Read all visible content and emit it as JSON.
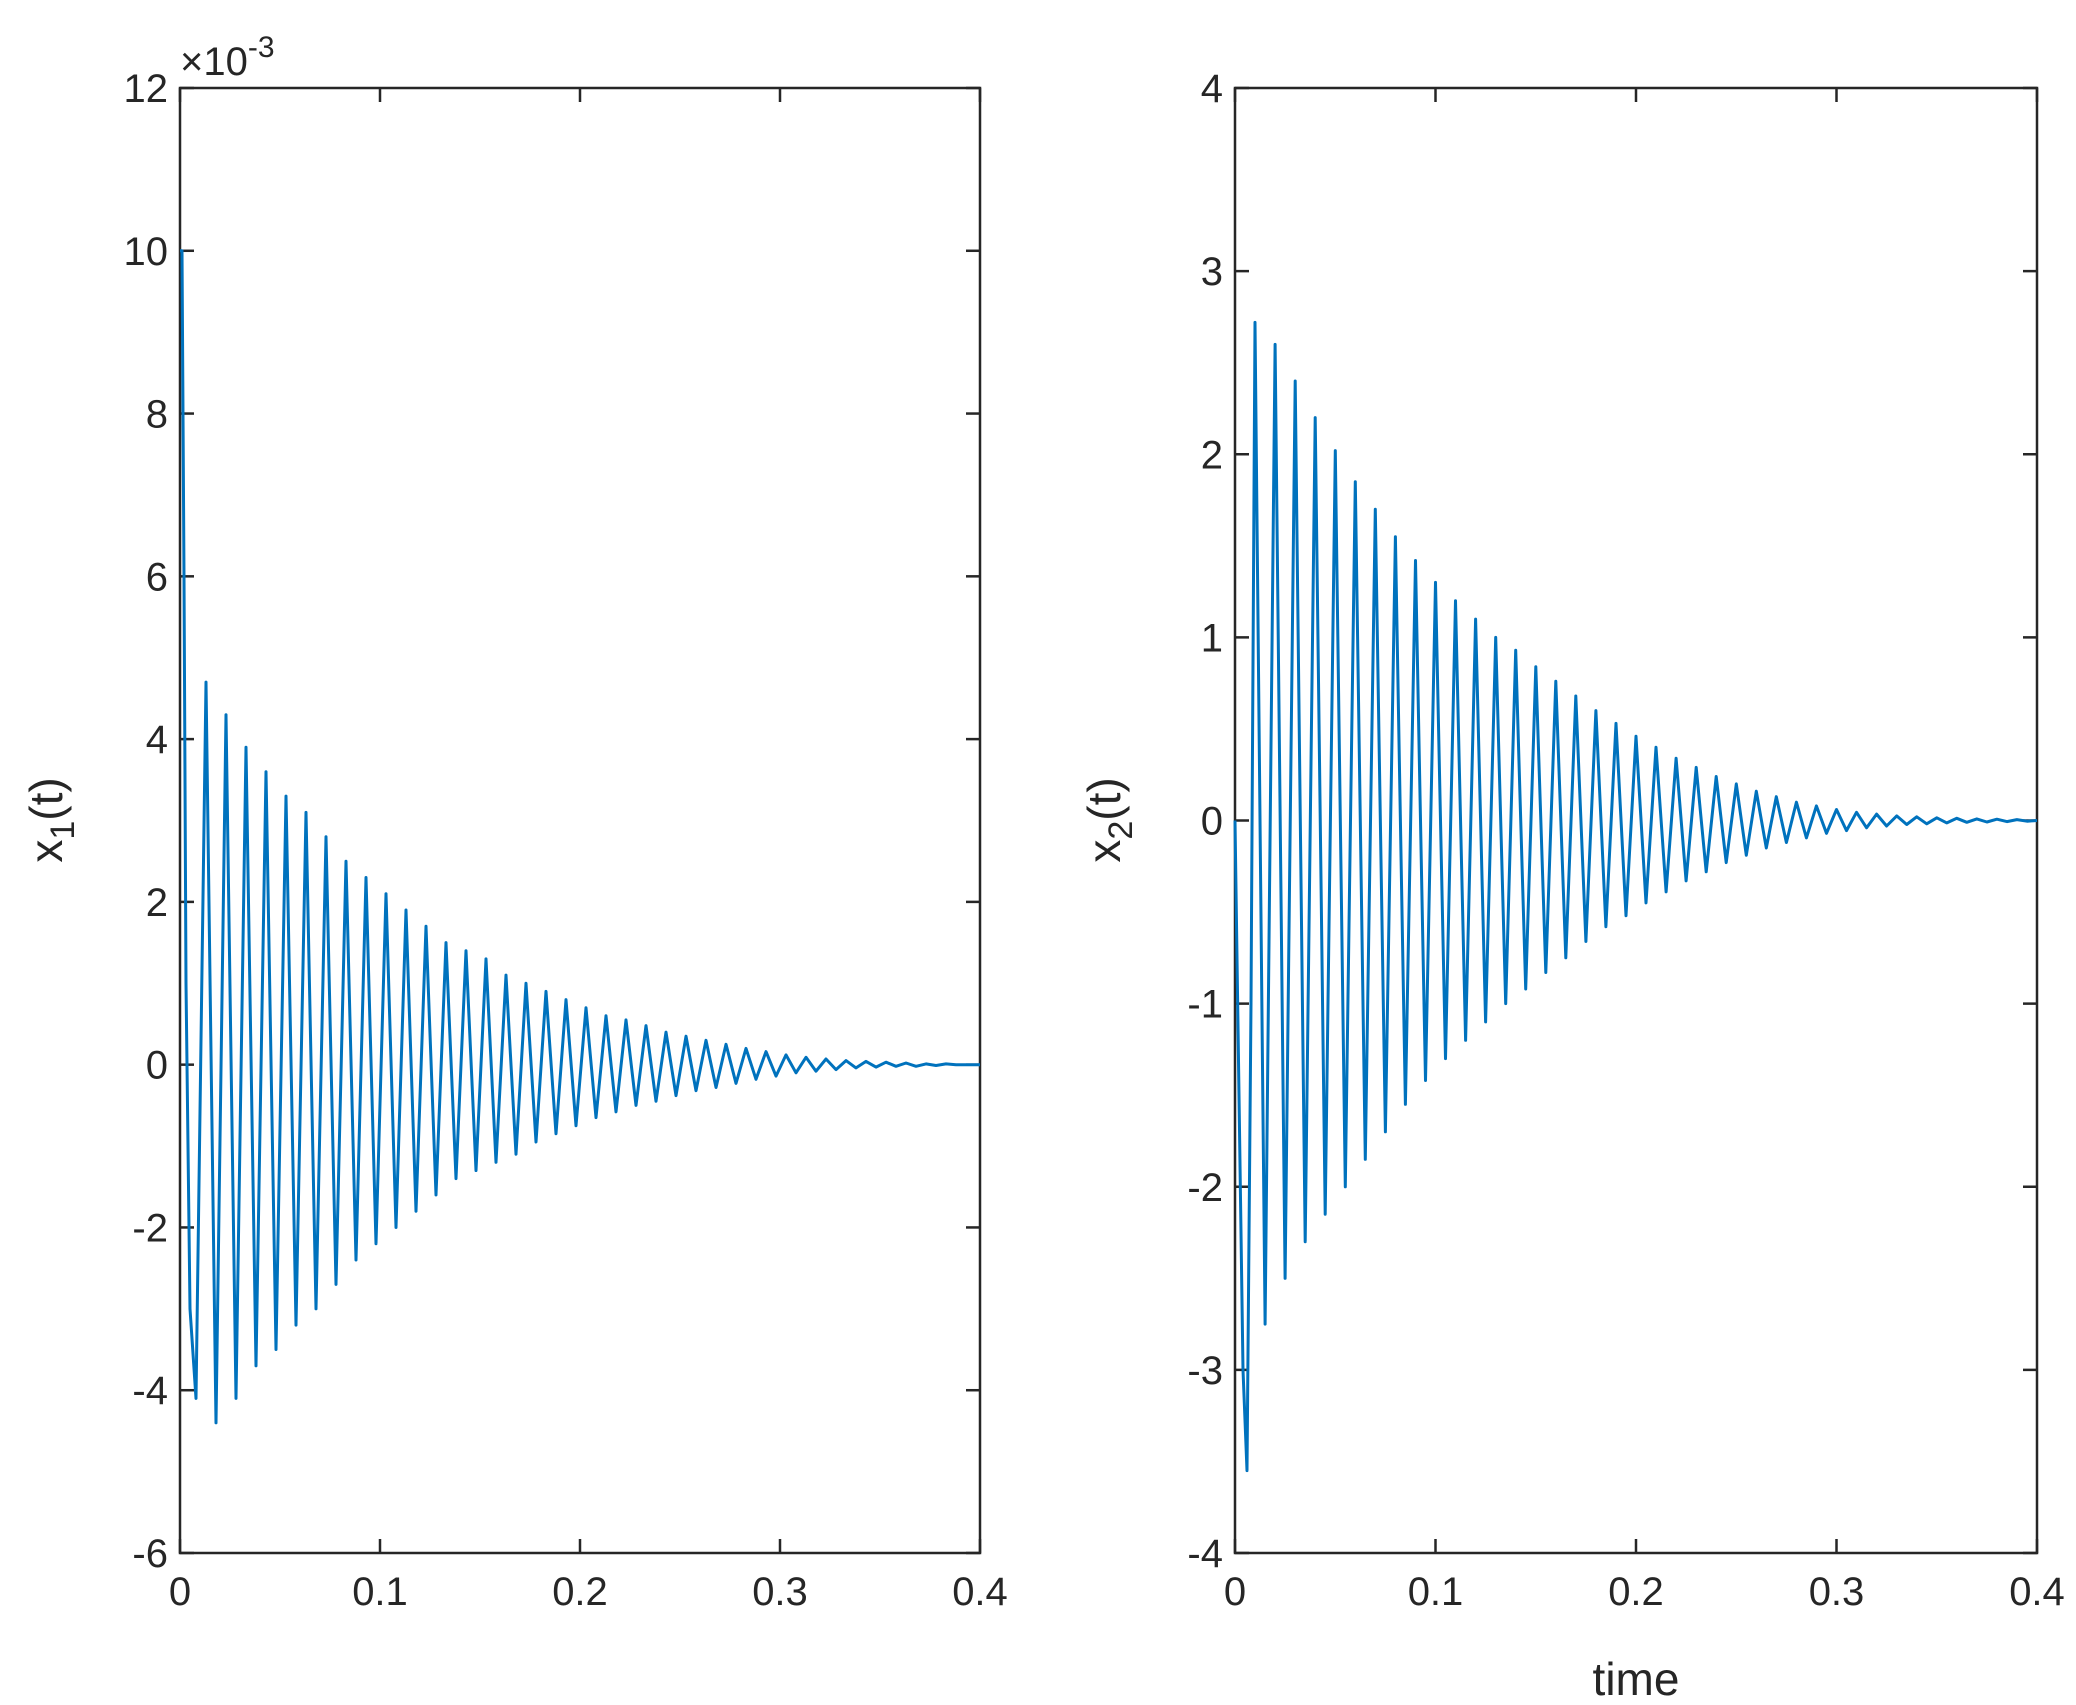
{
  "chart_data": [
    {
      "type": "line",
      "ylabel_base": "x",
      "ylabel_sub": "1",
      "ylabel_tail": "(t)",
      "xlabel": "",
      "xlim": [
        0,
        0.4
      ],
      "ylim": [
        -0.006,
        0.012
      ],
      "xticks": [
        0,
        0.1,
        0.2,
        0.3,
        0.4
      ],
      "xtick_labels": [
        "0",
        "0.1",
        "0.2",
        "0.3",
        "0.4"
      ],
      "yticks": [
        -0.006,
        -0.004,
        -0.002,
        0,
        0.002,
        0.004,
        0.006,
        0.008,
        0.01,
        0.012
      ],
      "ytick_labels": [
        "-6",
        "-4",
        "-2",
        "0",
        "2",
        "4",
        "6",
        "8",
        "10",
        "12"
      ],
      "exponent_prefix": "×10",
      "exponent_power": "-3",
      "grid": false,
      "line_color": "#0072BD",
      "series": [
        {
          "x": [
            0,
            0.001,
            0.002,
            0.003,
            0.005,
            0.008,
            0.013,
            0.018,
            0.023,
            0.028,
            0.033,
            0.038,
            0.043,
            0.048,
            0.053,
            0.058,
            0.063,
            0.068,
            0.073,
            0.078,
            0.083,
            0.088,
            0.093,
            0.098,
            0.103,
            0.108,
            0.113,
            0.118,
            0.123,
            0.128,
            0.133,
            0.138,
            0.143,
            0.148,
            0.153,
            0.158,
            0.163,
            0.168,
            0.173,
            0.178,
            0.183,
            0.188,
            0.193,
            0.198,
            0.203,
            0.208,
            0.213,
            0.218,
            0.223,
            0.228,
            0.233,
            0.238,
            0.243,
            0.248,
            0.253,
            0.258,
            0.263,
            0.268,
            0.273,
            0.278,
            0.283,
            0.288,
            0.293,
            0.298,
            0.303,
            0.308,
            0.313,
            0.318,
            0.323,
            0.328,
            0.333,
            0.338,
            0.343,
            0.348,
            0.353,
            0.358,
            0.363,
            0.368,
            0.373,
            0.378,
            0.383,
            0.388,
            0.393,
            0.398,
            0.4
          ],
          "y": [
            0.01,
            0.01,
            0.006,
            0.001,
            -0.003,
            -0.0041,
            0.0047,
            -0.0044,
            0.0043,
            -0.0041,
            0.0039,
            -0.0037,
            0.0036,
            -0.0035,
            0.0033,
            -0.0032,
            0.0031,
            -0.003,
            0.0028,
            -0.0027,
            0.0025,
            -0.0024,
            0.0023,
            -0.0022,
            0.0021,
            -0.002,
            0.0019,
            -0.0018,
            0.0017,
            -0.0016,
            0.0015,
            -0.0014,
            0.0014,
            -0.0013,
            0.0013,
            -0.0012,
            0.0011,
            -0.0011,
            0.001,
            -0.00095,
            0.0009,
            -0.00085,
            0.0008,
            -0.00075,
            0.0007,
            -0.00065,
            0.0006,
            -0.00058,
            0.00055,
            -0.0005,
            0.00048,
            -0.00045,
            0.0004,
            -0.00038,
            0.00035,
            -0.00032,
            0.0003,
            -0.00028,
            0.00025,
            -0.00023,
            0.0002,
            -0.00018,
            0.00016,
            -0.00014,
            0.00012,
            -0.0001,
            9e-05,
            -8e-05,
            7e-05,
            -6e-05,
            5e-05,
            -4e-05,
            4e-05,
            -3e-05,
            3e-05,
            -2e-05,
            2e-05,
            -2e-05,
            1e-05,
            -1e-05,
            1e-05,
            0,
            0,
            0,
            0
          ]
        }
      ]
    },
    {
      "type": "line",
      "ylabel_base": "x",
      "ylabel_sub": "2",
      "ylabel_tail": "(t)",
      "xlabel": "time",
      "xlim": [
        0,
        0.4
      ],
      "ylim": [
        -4,
        4
      ],
      "xticks": [
        0,
        0.1,
        0.2,
        0.3,
        0.4
      ],
      "xtick_labels": [
        "0",
        "0.1",
        "0.2",
        "0.3",
        "0.4"
      ],
      "yticks": [
        -4,
        -3,
        -2,
        -1,
        0,
        1,
        2,
        3,
        4
      ],
      "ytick_labels": [
        "-4",
        "-3",
        "-2",
        "-1",
        "0",
        "1",
        "2",
        "3",
        "4"
      ],
      "grid": false,
      "line_color": "#0072BD",
      "series": [
        {
          "x": [
            0,
            0.002,
            0.004,
            0.006,
            0.008,
            0.01,
            0.015,
            0.02,
            0.025,
            0.03,
            0.035,
            0.04,
            0.045,
            0.05,
            0.055,
            0.06,
            0.065,
            0.07,
            0.075,
            0.08,
            0.085,
            0.09,
            0.095,
            0.1,
            0.105,
            0.11,
            0.115,
            0.12,
            0.125,
            0.13,
            0.135,
            0.14,
            0.145,
            0.15,
            0.155,
            0.16,
            0.165,
            0.17,
            0.175,
            0.18,
            0.185,
            0.19,
            0.195,
            0.2,
            0.205,
            0.21,
            0.215,
            0.22,
            0.225,
            0.23,
            0.235,
            0.24,
            0.245,
            0.25,
            0.255,
            0.26,
            0.265,
            0.27,
            0.275,
            0.28,
            0.285,
            0.29,
            0.295,
            0.3,
            0.305,
            0.31,
            0.315,
            0.32,
            0.325,
            0.33,
            0.335,
            0.34,
            0.345,
            0.35,
            0.355,
            0.36,
            0.365,
            0.37,
            0.375,
            0.38,
            0.385,
            0.39,
            0.395,
            0.4
          ],
          "y": [
            0,
            -1.5,
            -3.0,
            -3.55,
            -1.0,
            2.72,
            -2.75,
            2.6,
            -2.5,
            2.4,
            -2.3,
            2.2,
            -2.15,
            2.02,
            -2.0,
            1.85,
            -1.85,
            1.7,
            -1.7,
            1.55,
            -1.55,
            1.42,
            -1.42,
            1.3,
            -1.3,
            1.2,
            -1.2,
            1.1,
            -1.1,
            1.0,
            -1.0,
            0.93,
            -0.92,
            0.84,
            -0.83,
            0.76,
            -0.75,
            0.68,
            -0.66,
            0.6,
            -0.58,
            0.53,
            -0.52,
            0.46,
            -0.45,
            0.4,
            -0.39,
            0.34,
            -0.33,
            0.29,
            -0.28,
            0.24,
            -0.23,
            0.2,
            -0.19,
            0.16,
            -0.15,
            0.13,
            -0.12,
            0.1,
            -0.095,
            0.08,
            -0.07,
            0.06,
            -0.055,
            0.045,
            -0.04,
            0.035,
            -0.03,
            0.025,
            -0.022,
            0.02,
            -0.018,
            0.015,
            -0.013,
            0.012,
            -0.01,
            0.009,
            -0.008,
            0.007,
            -0.006,
            0.005,
            -0.004,
            0
          ]
        }
      ]
    }
  ]
}
